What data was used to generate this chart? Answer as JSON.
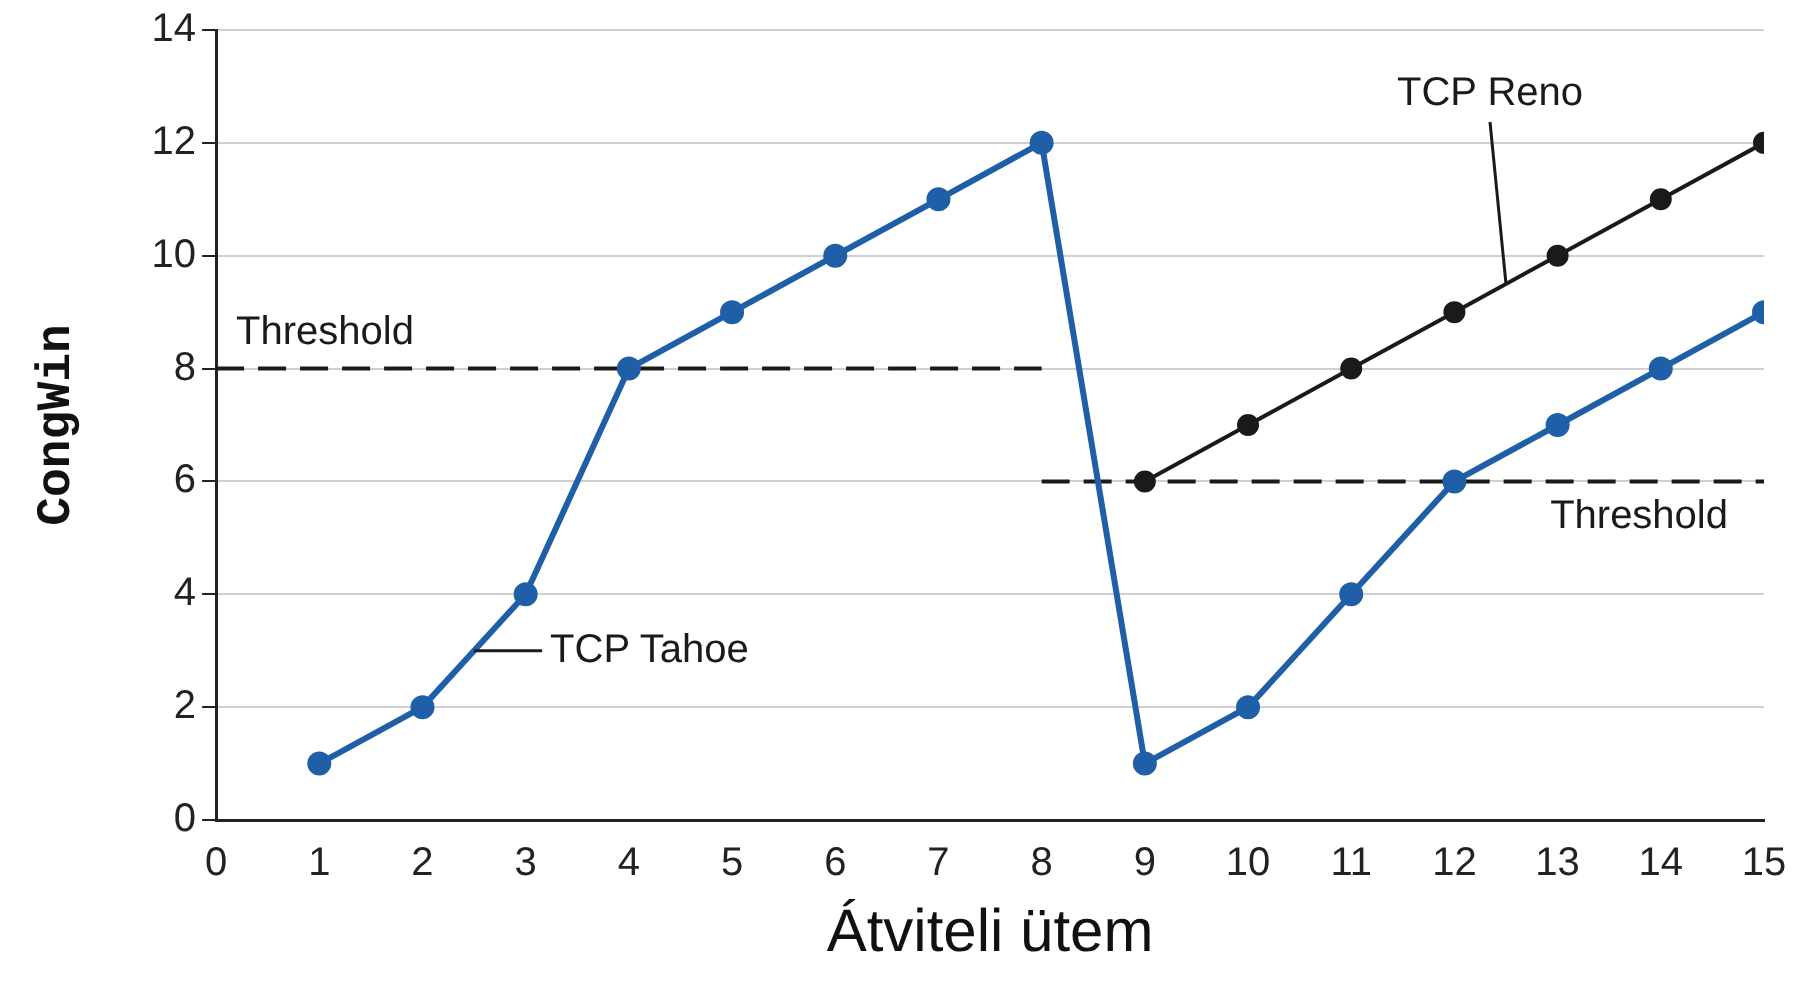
{
  "chart_data": {
    "type": "line",
    "xlabel": "Átviteli ütem",
    "ylabel": "CongWin",
    "xlim": [
      0,
      15
    ],
    "xticks": [
      0,
      1,
      2,
      3,
      4,
      5,
      6,
      7,
      8,
      9,
      10,
      11,
      12,
      13,
      14,
      15
    ],
    "ylim": [
      0,
      14
    ],
    "yticks": [
      0,
      2,
      4,
      6,
      8,
      10,
      12,
      14
    ],
    "grid": "y",
    "legend": false,
    "annotations": [
      {
        "text": "TCP Tahoe",
        "x": 2.5,
        "y": 3
      }
    ],
    "series": [
      {
        "color": "#1f5fa8",
        "marker": "circle",
        "line_style": "solid",
        "x": [
          1,
          2,
          3,
          4,
          5,
          6,
          7,
          8,
          9,
          10,
          11,
          12,
          13,
          14,
          15
        ],
        "values": [
          1,
          2,
          4,
          8,
          9,
          10,
          11,
          12,
          1,
          2,
          4,
          6,
          7,
          8,
          9
        ]
      },
      {
        "name": "TCP Reno",
        "color": "#1a1a1a",
        "marker": "circle",
        "line_style": "solid",
        "x": [
          9,
          10,
          11,
          12,
          13,
          14,
          15
        ],
        "values": [
          6,
          7,
          8,
          9,
          10,
          11,
          12
        ]
      },
      {
        "name": "Threshold",
        "color": "#1a1a1a",
        "marker": "none",
        "line_style": "dashed",
        "x": [
          0,
          8
        ],
        "values": [
          8,
          8
        ]
      },
      {
        "name": "Threshold",
        "color": "#1a1a1a",
        "marker": "none",
        "line_style": "dashed",
        "x": [
          8,
          15
        ],
        "values": [
          6,
          6
        ]
      }
    ]
  }
}
